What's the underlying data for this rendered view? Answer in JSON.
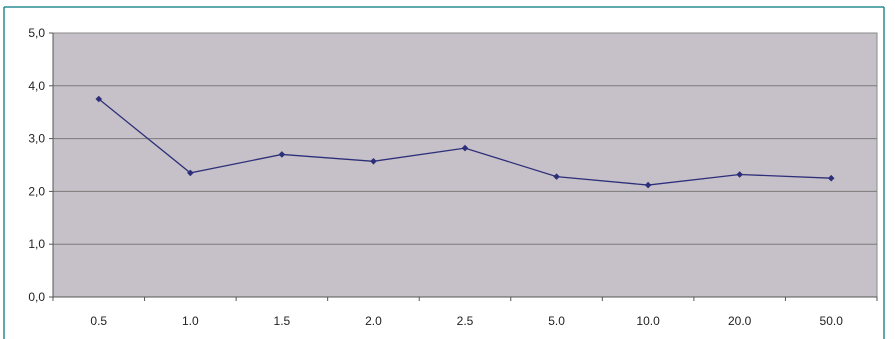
{
  "chart_data": {
    "type": "line",
    "title": "",
    "xlabel": "",
    "ylabel": "",
    "categories": [
      "0.5",
      "1.0",
      "1.5",
      "2.0",
      "2.5",
      "5.0",
      "10.0",
      "20.0",
      "50.0"
    ],
    "series": [
      {
        "values": [
          3.75,
          2.35,
          2.7,
          2.57,
          2.82,
          2.28,
          2.12,
          2.32,
          2.25
        ]
      }
    ],
    "ylim": [
      0,
      5
    ],
    "yticks": [
      "0,0",
      "1,0",
      "2,0",
      "3,0",
      "4,0",
      "5,0"
    ],
    "grid": true,
    "legend": "none",
    "colors": {
      "plot_background": "#c6c1c8",
      "gridline": "#7a7a7a",
      "series_line": "#2e2f7a",
      "frame_border": "#2a8c93"
    }
  }
}
